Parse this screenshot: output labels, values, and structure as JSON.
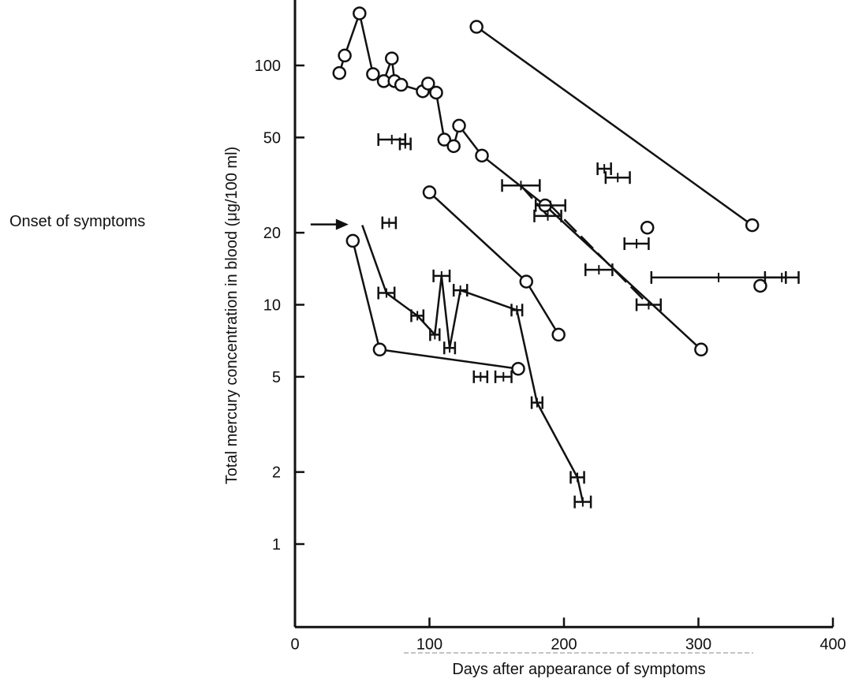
{
  "chart_data": {
    "type": "scatter",
    "title": "",
    "xlabel": "Days after appearance of symptoms",
    "ylabel": "Total mercury concentration in blood (μg/100 ml)",
    "y_scale": "log",
    "xlim": [
      0,
      400
    ],
    "ylim": [
      0.45,
      200
    ],
    "x_ticks": [
      0,
      100,
      200,
      300,
      400
    ],
    "x_tick_labels": [
      "0",
      "100",
      "200",
      "300",
      "400"
    ],
    "y_ticks": [
      1,
      2,
      5,
      10,
      20,
      50,
      100
    ],
    "y_tick_labels": [
      "1",
      "2",
      "5",
      "10",
      "20",
      "50",
      "100"
    ],
    "grid": false,
    "annotation": {
      "text": "Onset of symptoms",
      "arrow_to": {
        "x": 48,
        "y": 22
      }
    },
    "series": [
      {
        "marker": "circle",
        "line": "solid",
        "points": [
          [
            33,
            93
          ],
          [
            37,
            110
          ],
          [
            48,
            165
          ],
          [
            58,
            92
          ],
          [
            66,
            86
          ],
          [
            72,
            107
          ],
          [
            74,
            86
          ],
          [
            79,
            83
          ],
          [
            95,
            78
          ],
          [
            99,
            84
          ],
          [
            105,
            77
          ],
          [
            111,
            49
          ],
          [
            118,
            46
          ],
          [
            122,
            56
          ],
          [
            139,
            42
          ],
          [
            186,
            26
          ],
          [
            302,
            6.5
          ]
        ]
      },
      {
        "marker": "circle",
        "line": "solid",
        "points": [
          [
            135,
            145
          ],
          [
            340,
            21.5
          ]
        ]
      },
      {
        "marker": "circle",
        "line": "solid",
        "points": [
          [
            100,
            29.5
          ],
          [
            172,
            12.5
          ],
          [
            196,
            7.5
          ]
        ]
      },
      {
        "marker": "circle",
        "line": "solid",
        "points": [
          [
            43,
            18.5
          ],
          [
            63,
            6.5
          ],
          [
            166,
            5.4
          ]
        ]
      },
      {
        "marker": "circle",
        "line": "none",
        "points": [
          [
            262,
            21
          ],
          [
            346,
            12
          ]
        ]
      },
      {
        "marker": "range",
        "line": "solid",
        "points": [
          [
            50,
            21.5,
            null
          ],
          [
            68,
            11.2,
            12
          ],
          [
            91,
            9,
            9
          ],
          [
            104,
            7.5,
            7
          ],
          [
            109,
            13.2,
            12
          ],
          [
            115,
            6.6,
            8
          ],
          [
            123,
            11.5,
            10
          ],
          [
            165,
            9.5,
            8
          ],
          [
            180,
            3.9,
            8
          ],
          [
            210,
            1.9,
            10
          ],
          [
            214,
            1.5,
            12
          ]
        ]
      },
      {
        "marker": "range",
        "line": "dashed",
        "points": [
          [
            168,
            31.5,
            28
          ],
          [
            188,
            23.5,
            20
          ],
          [
            190,
            26,
            22
          ],
          [
            263,
            10,
            18
          ]
        ]
      },
      {
        "marker": "range",
        "line": "none",
        "points": [
          [
            72,
            49,
            20
          ],
          [
            82,
            47,
            8
          ],
          [
            70,
            22,
            10
          ],
          [
            138,
            5,
            10
          ],
          [
            155,
            5,
            12
          ],
          [
            230,
            37,
            10
          ],
          [
            240,
            34,
            18
          ],
          [
            254,
            18,
            18
          ],
          [
            226,
            14,
            20
          ],
          [
            315,
            13,
            100
          ],
          [
            362,
            13,
            25
          ]
        ]
      }
    ]
  }
}
